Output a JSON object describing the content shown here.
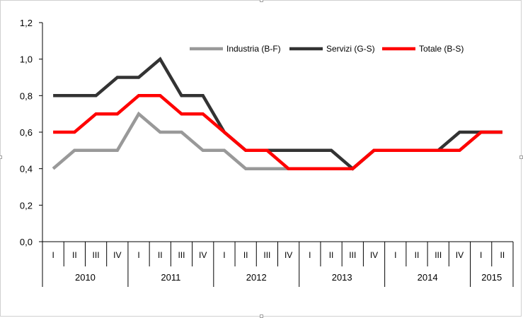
{
  "chart_data": {
    "type": "line",
    "y_ticks": [
      "0,0",
      "0,2",
      "0,4",
      "0,6",
      "0,8",
      "1,0",
      "1,2"
    ],
    "ylim": [
      0,
      1.2
    ],
    "quarters": [
      "I",
      "II",
      "III",
      "IV",
      "I",
      "II",
      "III",
      "IV",
      "I",
      "II",
      "III",
      "IV",
      "I",
      "II",
      "III",
      "IV",
      "I",
      "II",
      "III",
      "IV",
      "I",
      "II"
    ],
    "years": [
      {
        "label": "2010",
        "quarters": 4
      },
      {
        "label": "2011",
        "quarters": 4
      },
      {
        "label": "2012",
        "quarters": 4
      },
      {
        "label": "2013",
        "quarters": 4
      },
      {
        "label": "2014",
        "quarters": 4
      },
      {
        "label": "2015",
        "quarters": 2
      }
    ],
    "series": [
      {
        "name": "Industria (B-F)",
        "color": "#999999",
        "values": [
          0.4,
          0.5,
          0.5,
          0.5,
          0.7,
          0.6,
          0.6,
          0.5,
          0.5,
          0.4,
          0.4,
          0.4,
          0.4,
          0.4,
          0.4,
          0.5,
          0.5,
          0.5,
          0.5,
          0.5,
          0.6,
          0.6
        ]
      },
      {
        "name": "Servizi (G-S)",
        "color": "#333333",
        "values": [
          0.8,
          0.8,
          0.8,
          0.9,
          0.9,
          1.0,
          0.8,
          0.8,
          0.6,
          0.5,
          0.5,
          0.5,
          0.5,
          0.5,
          0.4,
          0.5,
          0.5,
          0.5,
          0.5,
          0.6,
          0.6,
          0.6
        ]
      },
      {
        "name": "Totale (B-S)",
        "color": "#ff0000",
        "values": [
          0.6,
          0.6,
          0.7,
          0.7,
          0.8,
          0.8,
          0.7,
          0.7,
          0.6,
          0.5,
          0.5,
          0.4,
          0.4,
          0.4,
          0.4,
          0.5,
          0.5,
          0.5,
          0.5,
          0.5,
          0.6,
          0.6
        ]
      }
    ],
    "grid": false,
    "legend_position": "top-right"
  }
}
